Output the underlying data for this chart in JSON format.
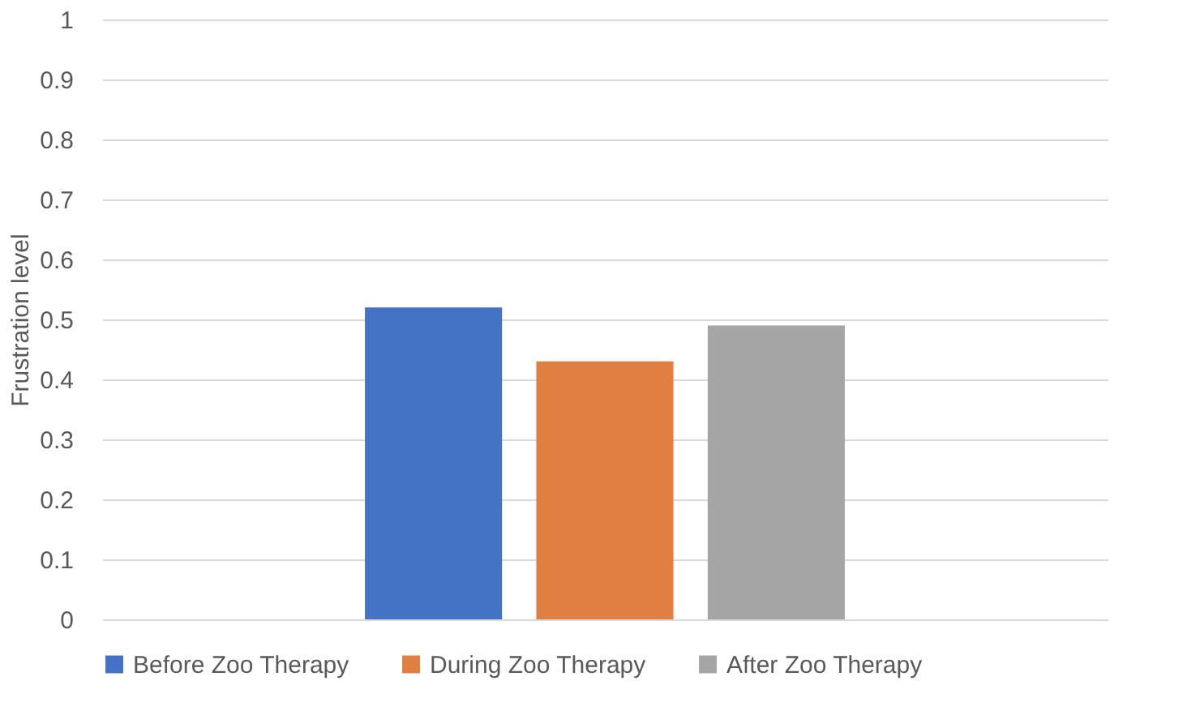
{
  "chart_data": {
    "type": "bar",
    "ylabel": "Frustration level",
    "categories": [
      null
    ],
    "series": [
      {
        "name": "Before Zoo Therapy",
        "color": "#4472c4",
        "values": [
          0.52
        ]
      },
      {
        "name": "During Zoo Therapy",
        "color": "#e07f41",
        "values": [
          0.43
        ]
      },
      {
        "name": "After Zoo Therapy",
        "color": "#a5a5a5",
        "values": [
          0.49
        ]
      }
    ],
    "ylim": [
      0,
      1
    ],
    "yticks": [
      0,
      0.1,
      0.2,
      0.3,
      0.4,
      0.5,
      0.6,
      0.7,
      0.8,
      0.9,
      1
    ],
    "grid": "y",
    "legend": "bottom"
  }
}
